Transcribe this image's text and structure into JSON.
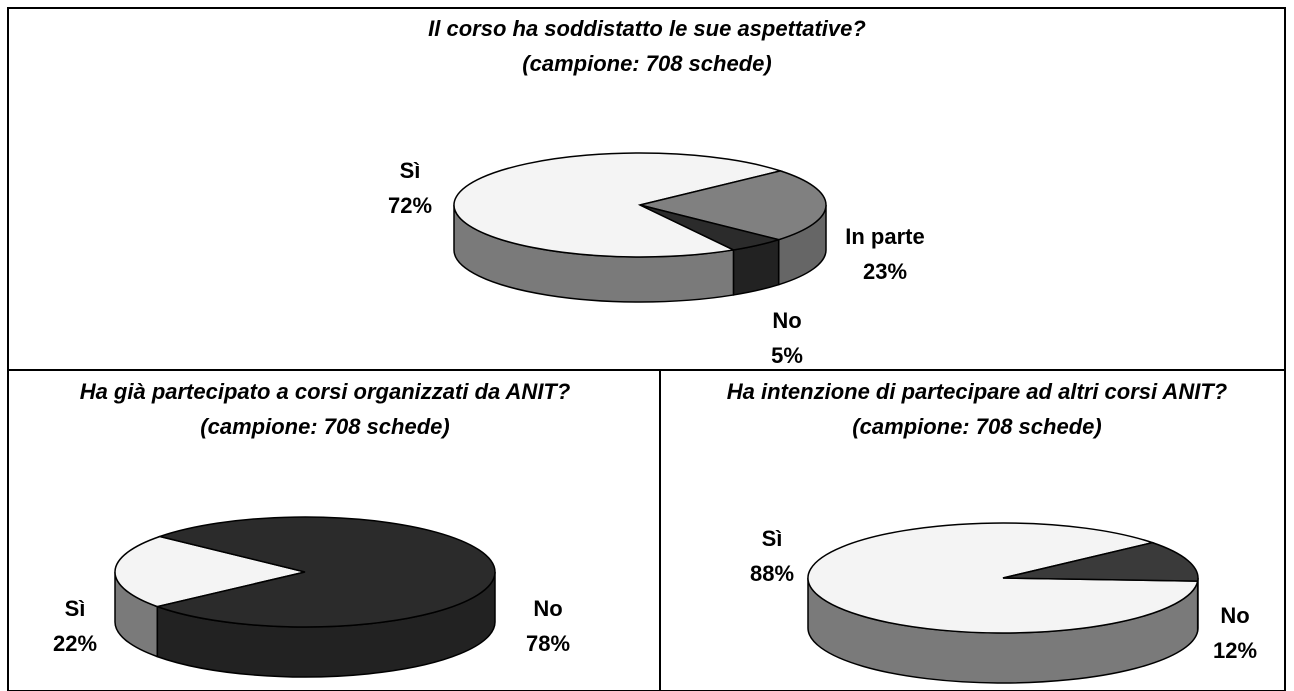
{
  "chart_data": [
    {
      "type": "pie",
      "title": "Il corso ha soddistatto le sue aspettative?",
      "subtitle": "(campione: 708 schede)",
      "categories": [
        "Sì",
        "In parte",
        "No"
      ],
      "values": [
        72,
        23,
        5
      ],
      "value_labels": [
        "72%",
        "23%",
        "5%"
      ],
      "colors": [
        "#f4f4f4",
        "#808080",
        "#2b2b2b"
      ]
    },
    {
      "type": "pie",
      "title": "Ha già partecipato a corsi organizzati da ANIT?",
      "subtitle": "(campione: 708 schede)",
      "categories": [
        "Sì",
        "No"
      ],
      "values": [
        22,
        78
      ],
      "value_labels": [
        "22%",
        "78%"
      ],
      "colors": [
        "#f4f4f4",
        "#2b2b2b"
      ]
    },
    {
      "type": "pie",
      "title": "Ha intenzione di partecipare ad altri corsi ANIT?",
      "subtitle": "(campione: 708 schede)",
      "categories": [
        "Sì",
        "No"
      ],
      "values": [
        88,
        12
      ],
      "value_labels": [
        "88%",
        "12%"
      ],
      "colors": [
        "#f4f4f4",
        "#3a3a3a"
      ]
    }
  ]
}
